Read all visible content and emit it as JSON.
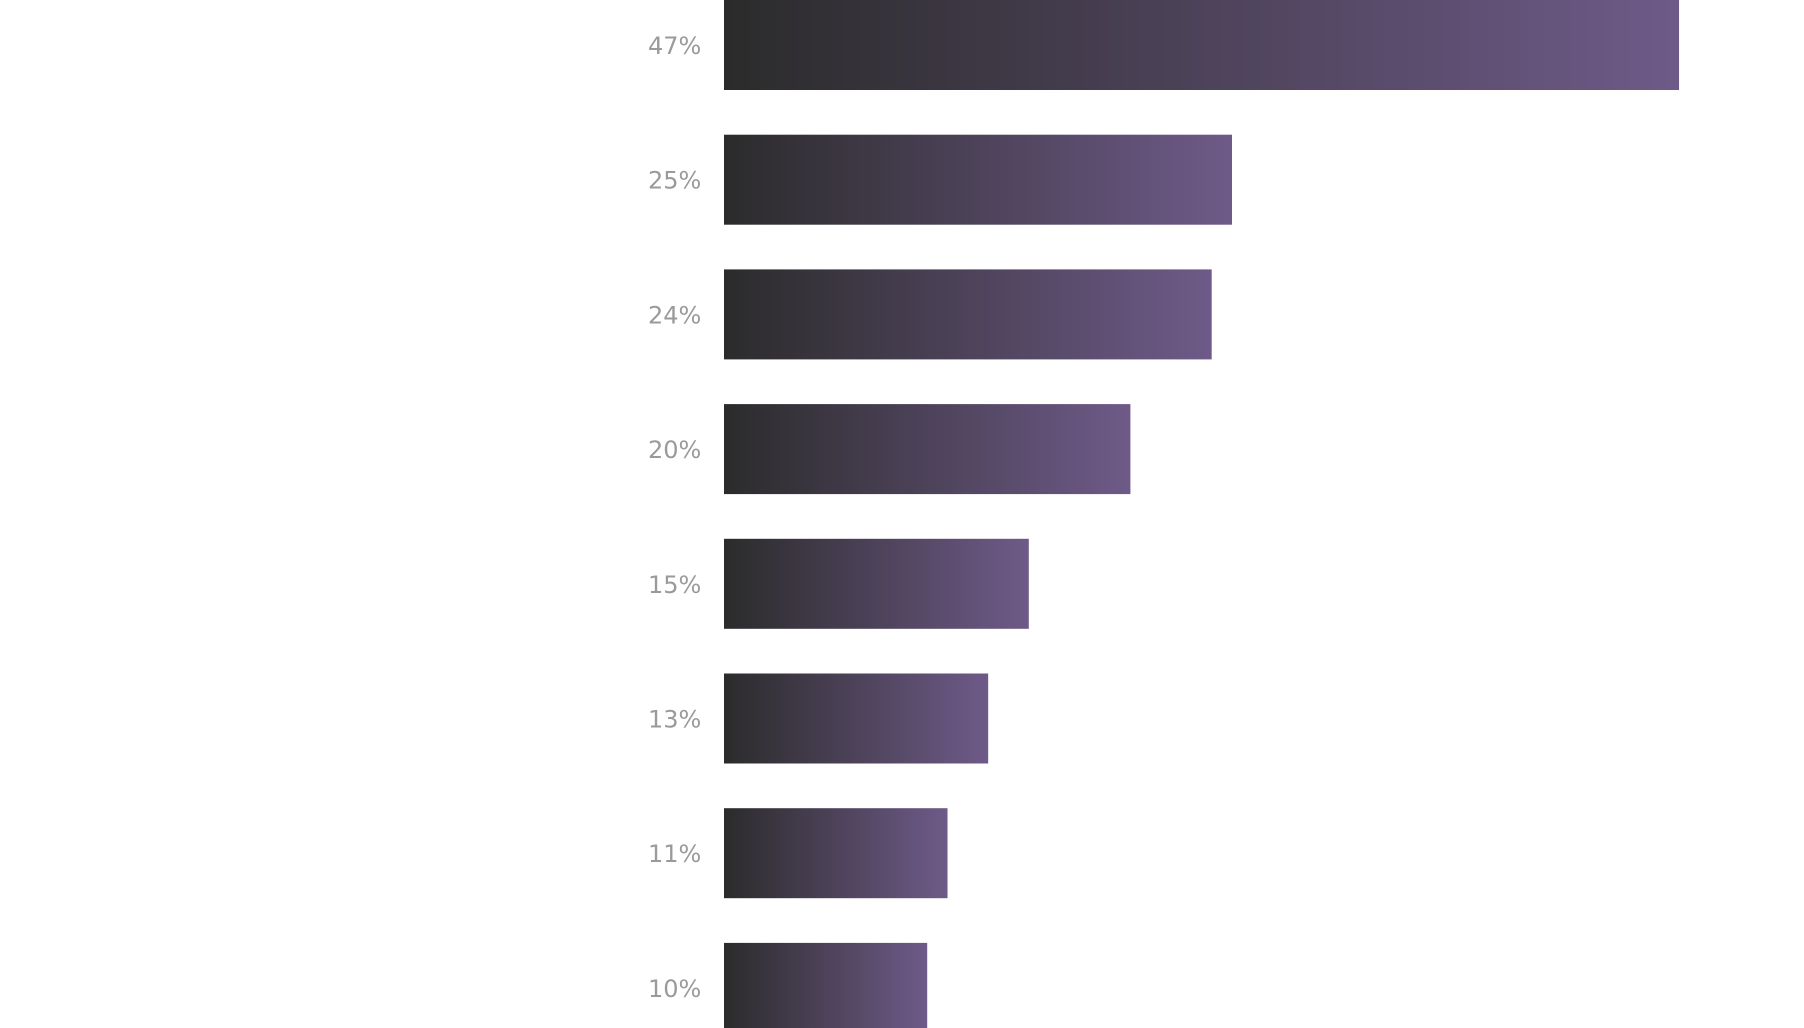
{
  "chart_data": {
    "type": "bar",
    "orientation": "horizontal",
    "values": [
      47,
      25,
      24,
      20,
      15,
      13,
      11,
      10
    ],
    "value_labels": [
      "47%",
      "25%",
      "24%",
      "20%",
      "15%",
      "13%",
      "11%",
      "10%"
    ],
    "gradient": [
      "#2b2b2b",
      "#6e5a88"
    ]
  }
}
